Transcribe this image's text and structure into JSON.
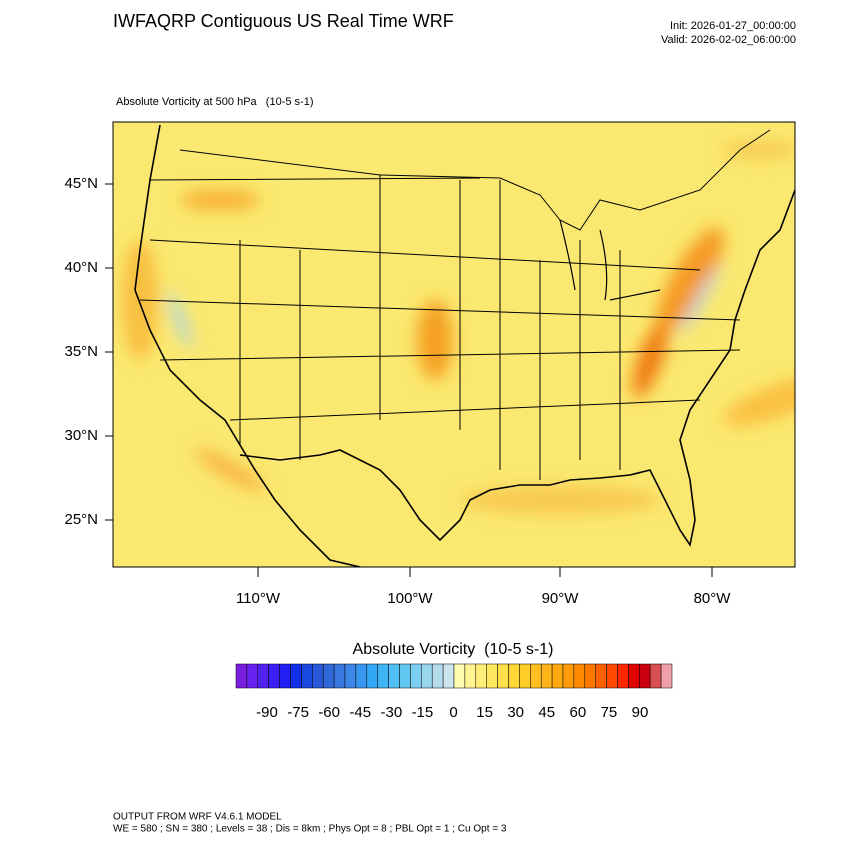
{
  "header": {
    "title": "IWFAQRP Contiguous US Real Time WRF",
    "init": "Init: 2026-01-27_00:00:00",
    "valid": "Valid: 2026-02-02_06:00:00"
  },
  "map": {
    "field": "Absolute Vorticity at 500 hPa   (10-5 s-1)",
    "lat_labels": [
      "45°N",
      "40°N",
      "35°N",
      "30°N",
      "25°N"
    ],
    "lon_labels": [
      "110°W",
      "100°W",
      "90°W",
      "80°W"
    ]
  },
  "colorbar": {
    "title": "Absolute Vorticity  (10-5 s-1)",
    "ticks": [
      -90,
      -75,
      -60,
      -45,
      -30,
      -15,
      0,
      15,
      30,
      45,
      60,
      75,
      90
    ],
    "colors": [
      "#7a1fe0",
      "#6a22f0",
      "#5020f5",
      "#3a20f5",
      "#2020f5",
      "#1030e8",
      "#1848e0",
      "#2858d8",
      "#3068d8",
      "#3878e0",
      "#3c88e8",
      "#3898f0",
      "#30a8f5",
      "#40b4f5",
      "#50c0f5",
      "#60c8f0",
      "#7ccff0",
      "#98d6ee",
      "#b4dcec",
      "#cce4ec",
      "#fffcb0",
      "#fff490",
      "#ffee78",
      "#ffe860",
      "#ffe048",
      "#ffd838",
      "#ffcc28",
      "#ffc020",
      "#ffb418",
      "#ffa810",
      "#ff9a08",
      "#ff8a00",
      "#ff7800",
      "#ff6000",
      "#ff4800",
      "#ff2800",
      "#e00000",
      "#c80010",
      "#d85050",
      "#f0a0a8"
    ]
  },
  "footer": {
    "lines": [
      "OUTPUT FROM WRF V4.6.1 MODEL",
      "WE = 580 ; SN = 380 ; Levels = 38 ; Dis = 8km ; Phys Opt = 8 ; PBL Opt = 1 ; Cu Opt = 3"
    ]
  }
}
